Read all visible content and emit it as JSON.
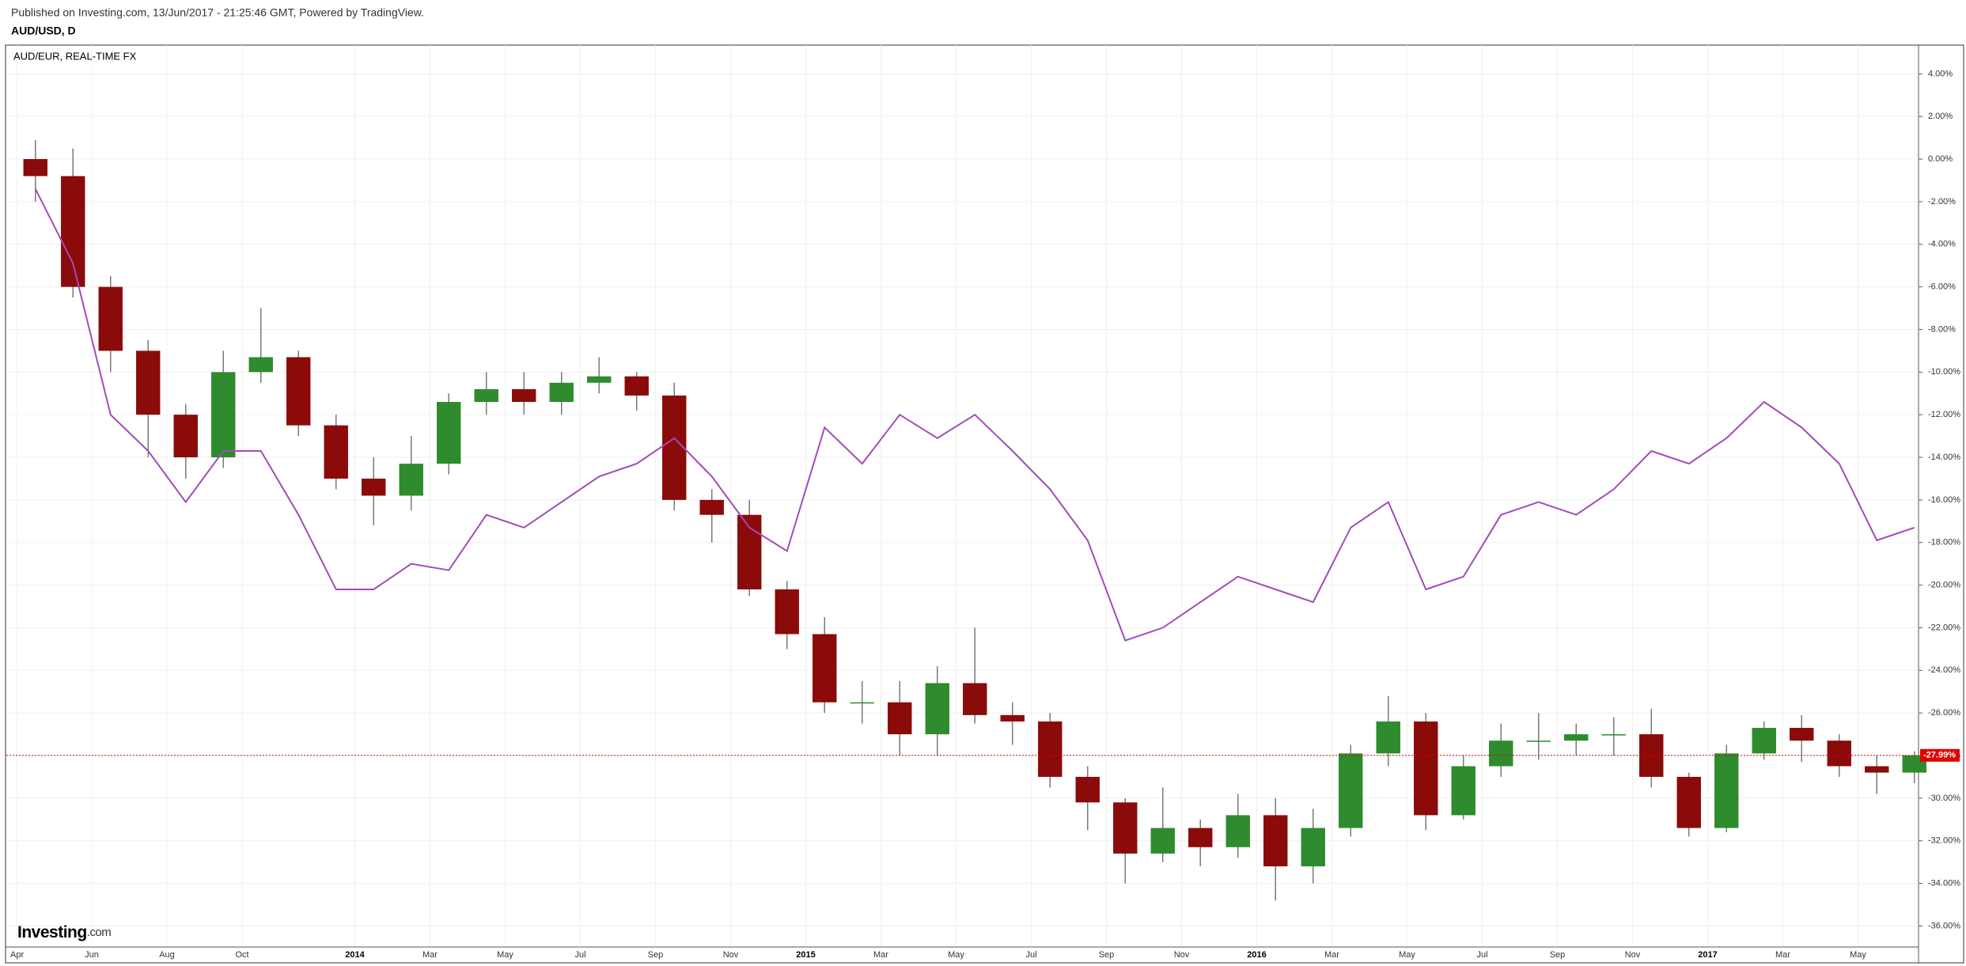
{
  "chart_data": {
    "type": "candlestick",
    "title": "Published on Investing.com, 13/Jun/2017 - 21:25:46 GMT, Powered by TradingView.",
    "logo": [
      "Investing",
      ".com"
    ],
    "x": [
      "2013-04",
      "2013-05",
      "2013-06",
      "2013-07",
      "2013-08",
      "2013-09",
      "2013-10",
      "2013-11",
      "2013-12",
      "2014-01",
      "2014-02",
      "2014-03",
      "2014-04",
      "2014-05",
      "2014-06",
      "2014-07",
      "2014-08",
      "2014-09",
      "2014-10",
      "2014-11",
      "2014-12",
      "2015-01",
      "2015-02",
      "2015-03",
      "2015-04",
      "2015-05",
      "2015-06",
      "2015-07",
      "2015-08",
      "2015-09",
      "2015-10",
      "2015-11",
      "2015-12",
      "2016-01",
      "2016-02",
      "2016-03",
      "2016-04",
      "2016-05",
      "2016-06",
      "2016-07",
      "2016-08",
      "2016-09",
      "2016-10",
      "2016-11",
      "2016-12",
      "2017-01",
      "2017-02",
      "2017-03",
      "2017-04",
      "2017-05",
      "2017-06"
    ],
    "series": [
      {
        "name": "AUD/USD, D",
        "kind": "candlestick",
        "up_color": "#2e8b2e",
        "down_color": "#8b0a0a",
        "wick_color": "#7a7a7a",
        "open": [
          0,
          -0.8,
          -6,
          -9,
          -12,
          -14,
          -10,
          -9.3,
          -12.5,
          -15,
          -15.8,
          -14.3,
          -11.4,
          -10.8,
          -11.4,
          -10.5,
          -10.2,
          -11.1,
          -16,
          -16.7,
          -20.2,
          -22.3,
          -25.5,
          -25.5,
          -27,
          -24.6,
          -26.1,
          -26.4,
          -29,
          -30.2,
          -32.6,
          -31.4,
          -32.3,
          -30.8,
          -33.2,
          -31.4,
          -27.9,
          -26.4,
          -30.8,
          -28.5,
          -27.3,
          -27.3,
          -27,
          -27,
          -29,
          -31.4,
          -27.9,
          -26.7,
          -27.3,
          -28.5,
          -28.8
        ],
        "high": [
          0.9,
          0.5,
          -5.5,
          -8.5,
          -11.5,
          -9,
          -7,
          -9,
          -12,
          -14,
          -13,
          -11,
          -10,
          -10,
          -10,
          -9.3,
          -10,
          -10.5,
          -15.5,
          -16,
          -19.8,
          -21.5,
          -24.5,
          -24.5,
          -23.8,
          -22,
          -25.5,
          -26,
          -28.5,
          -30,
          -29.5,
          -31,
          -29.8,
          -30,
          -30.5,
          -27.5,
          -25.2,
          -26,
          -28,
          -26.5,
          -26,
          -26.5,
          -26.2,
          -25.8,
          -28.8,
          -27.5,
          -26.4,
          -26.1,
          -27,
          -28,
          -27.8
        ],
        "low": [
          -2,
          -6.5,
          -10,
          -14,
          -15,
          -14.5,
          -10.5,
          -13,
          -15.5,
          -17.2,
          -16.5,
          -14.8,
          -12,
          -12,
          -12,
          -11,
          -11.8,
          -16.5,
          -18,
          -20.5,
          -23,
          -26,
          -26.5,
          -28,
          -28,
          -26.5,
          -27.5,
          -29.5,
          -31.5,
          -34,
          -33,
          -33.2,
          -32.8,
          -34.8,
          -34,
          -31.8,
          -28.5,
          -31.5,
          -31,
          -29,
          -28.2,
          -28,
          -28,
          -29.5,
          -31.8,
          -31.6,
          -28.2,
          -28.3,
          -29,
          -29.8,
          -29.3
        ],
        "close": [
          -0.8,
          -6,
          -9,
          -12,
          -14,
          -10,
          -9.3,
          -12.5,
          -15,
          -15.8,
          -14.3,
          -11.4,
          -10.8,
          -11.4,
          -10.5,
          -10.2,
          -11.1,
          -16,
          -16.7,
          -20.2,
          -22.3,
          -25.5,
          -25.5,
          -27,
          -24.6,
          -26.1,
          -26.4,
          -29,
          -30.2,
          -32.6,
          -31.4,
          -32.3,
          -30.8,
          -33.2,
          -31.4,
          -27.9,
          -26.4,
          -30.8,
          -28.5,
          -27.3,
          -27.3,
          -27,
          -27,
          -29,
          -31.4,
          -27.9,
          -26.7,
          -27.3,
          -28.5,
          -28.8,
          -27.99
        ]
      },
      {
        "name": "AUD/EUR, REAL-TIME FX",
        "kind": "line",
        "color": "#a04cb8",
        "values": [
          -1.4,
          -4.9,
          -12,
          -13.7,
          -16.1,
          -13.7,
          -13.7,
          -16.7,
          -20.2,
          -20.2,
          -19,
          -19.3,
          -16.7,
          -17.3,
          -16.1,
          -14.9,
          -14.3,
          -13.1,
          -14.9,
          -17.3,
          -18.4,
          -12.6,
          -14.3,
          -12,
          -13.1,
          -12,
          -13.7,
          -15.5,
          -17.9,
          -22.6,
          -22,
          -20.8,
          -19.6,
          -20.2,
          -20.8,
          -17.3,
          -16.1,
          -20.2,
          -19.6,
          -16.7,
          -16.1,
          -16.7,
          -15.5,
          -13.7,
          -14.3,
          -13.1,
          -11.4,
          -12.6,
          -14.3,
          -17.9,
          -17.3
        ]
      }
    ],
    "last_value": -27.99,
    "last_label": "-27.99%",
    "last_color": "#e00000",
    "ylim": [
      -36.95,
      5.35
    ],
    "yticks": [
      {
        "value": 4,
        "label": "4.00%"
      },
      {
        "value": 2,
        "label": "2.00%"
      },
      {
        "value": 0,
        "label": "0.00%"
      },
      {
        "value": -2,
        "label": "-2.00%"
      },
      {
        "value": -4,
        "label": "-4.00%"
      },
      {
        "value": -6,
        "label": "-6.00%"
      },
      {
        "value": -8,
        "label": "-8.00%"
      },
      {
        "value": -10,
        "label": "-10.00%"
      },
      {
        "value": -12,
        "label": "-12.00%"
      },
      {
        "value": -14,
        "label": "-14.00%"
      },
      {
        "value": -16,
        "label": "-16.00%"
      },
      {
        "value": -18,
        "label": "-18.00%"
      },
      {
        "value": -20,
        "label": "-20.00%"
      },
      {
        "value": -22,
        "label": "-22.00%"
      },
      {
        "value": -24,
        "label": "-24.00%"
      },
      {
        "value": -26,
        "label": "-26.00%"
      },
      {
        "value": -28,
        "label": "-28.00%"
      },
      {
        "value": -30,
        "label": "-30.00%"
      },
      {
        "value": -32,
        "label": "-32.00%"
      },
      {
        "value": -34,
        "label": "-34.00%"
      },
      {
        "value": -36,
        "label": "-36.00%"
      }
    ],
    "xticks": [
      {
        "value": "2013-04",
        "label": "Apr"
      },
      {
        "value": "2013-06",
        "label": "Jun"
      },
      {
        "value": "2013-08",
        "label": "Aug"
      },
      {
        "value": "2013-10",
        "label": "Oct"
      },
      {
        "value": "2014-01",
        "label": "2014"
      },
      {
        "value": "2014-03",
        "label": "Mar"
      },
      {
        "value": "2014-05",
        "label": "May"
      },
      {
        "value": "2014-07",
        "label": "Jul"
      },
      {
        "value": "2014-09",
        "label": "Sep"
      },
      {
        "value": "2014-11",
        "label": "Nov"
      },
      {
        "value": "2015-01",
        "label": "2015"
      },
      {
        "value": "2015-03",
        "label": "Mar"
      },
      {
        "value": "2015-05",
        "label": "May"
      },
      {
        "value": "2015-07",
        "label": "Jul"
      },
      {
        "value": "2015-09",
        "label": "Sep"
      },
      {
        "value": "2015-11",
        "label": "Nov"
      },
      {
        "value": "2016-01",
        "label": "2016"
      },
      {
        "value": "2016-03",
        "label": "Mar"
      },
      {
        "value": "2016-05",
        "label": "May"
      },
      {
        "value": "2016-07",
        "label": "Jul"
      },
      {
        "value": "2016-09",
        "label": "Sep"
      },
      {
        "value": "2016-11",
        "label": "Nov"
      },
      {
        "value": "2017-01",
        "label": "2017"
      },
      {
        "value": "2017-03",
        "label": "Mar"
      },
      {
        "value": "2017-05",
        "label": "May"
      }
    ],
    "grid": true
  }
}
